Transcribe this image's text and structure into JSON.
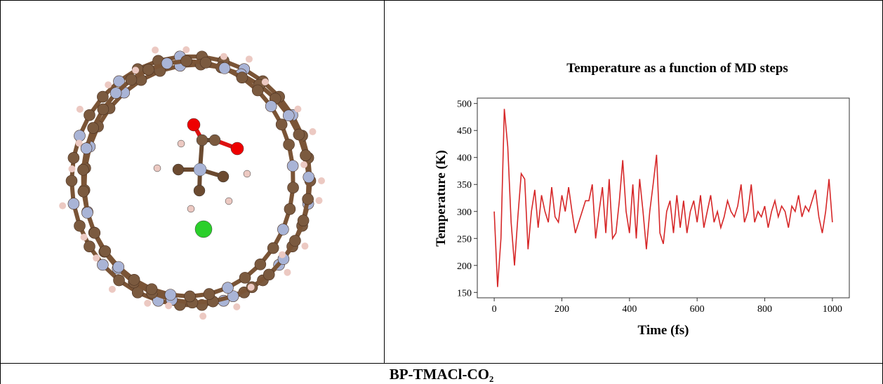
{
  "chart_data": {
    "type": "line",
    "title": "Temperature as a function of MD steps",
    "x_label": "Time (fs)",
    "y_label": "Temperature (K)",
    "xlim": [
      -50,
      1050
    ],
    "xticks": [
      0,
      200,
      400,
      600,
      800,
      1000
    ],
    "ylim": [
      140,
      510
    ],
    "yticks": [
      150,
      200,
      250,
      300,
      350,
      400,
      450,
      500
    ],
    "x": [
      0,
      10,
      20,
      30,
      40,
      50,
      60,
      70,
      80,
      90,
      100,
      110,
      120,
      130,
      140,
      150,
      160,
      170,
      180,
      190,
      200,
      210,
      220,
      230,
      240,
      250,
      260,
      270,
      280,
      290,
      300,
      310,
      320,
      330,
      340,
      350,
      360,
      370,
      380,
      390,
      400,
      410,
      420,
      430,
      440,
      450,
      460,
      470,
      480,
      490,
      500,
      510,
      520,
      530,
      540,
      550,
      560,
      570,
      580,
      590,
      600,
      610,
      620,
      630,
      640,
      650,
      660,
      670,
      680,
      690,
      700,
      710,
      720,
      730,
      740,
      750,
      760,
      770,
      780,
      790,
      800,
      810,
      820,
      830,
      840,
      850,
      860,
      870,
      880,
      890,
      900,
      910,
      920,
      930,
      940,
      950,
      960,
      970,
      980,
      990,
      1000
    ],
    "series": [
      {
        "name": "Temperature",
        "color": "#d62728",
        "values": [
          300,
          160,
          250,
          490,
          420,
          280,
          200,
          290,
          370,
          360,
          230,
          300,
          340,
          270,
          330,
          300,
          280,
          345,
          290,
          280,
          330,
          300,
          345,
          300,
          260,
          280,
          300,
          320,
          320,
          350,
          250,
          300,
          345,
          260,
          360,
          250,
          260,
          320,
          395,
          300,
          260,
          350,
          250,
          360,
          300,
          230,
          300,
          350,
          405,
          260,
          240,
          300,
          320,
          260,
          330,
          270,
          320,
          260,
          300,
          320,
          280,
          330,
          270,
          300,
          330,
          280,
          300,
          270,
          290,
          320,
          300,
          290,
          310,
          350,
          280,
          300,
          350,
          280,
          300,
          290,
          310,
          270,
          300,
          320,
          290,
          310,
          300,
          270,
          310,
          300,
          330,
          290,
          310,
          300,
          320,
          340,
          290,
          260,
          300,
          360,
          280
        ]
      }
    ]
  },
  "caption": "BP-TMACl-CO₂"
}
